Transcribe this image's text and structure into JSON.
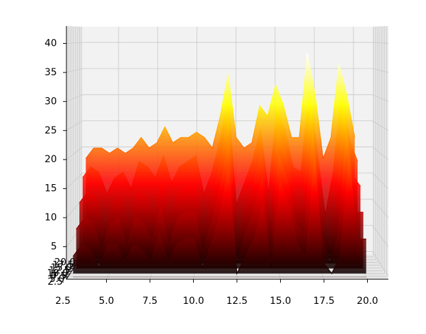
{
  "chart_data": {
    "type": "surface3d",
    "colormap": "hot",
    "grid": true,
    "x": [
      3,
      3.5,
      4,
      4.5,
      5,
      5.5,
      6,
      6.5,
      7,
      7.5,
      8,
      8.5,
      9,
      9.5,
      10,
      10.5,
      11,
      11.5,
      12,
      12.5,
      13,
      13.5,
      14,
      14.5,
      15,
      15.5,
      16,
      16.5,
      17,
      17.5,
      18,
      18.5,
      19,
      19.5,
      20
    ],
    "series": [
      {
        "y": 20,
        "values": [
          18,
          20,
          20,
          19,
          20,
          19,
          20,
          22,
          20,
          21,
          24,
          21,
          22,
          22,
          23,
          22,
          20,
          26,
          34,
          22,
          20,
          21,
          28,
          26,
          32,
          28,
          22,
          22,
          38,
          30,
          18,
          22,
          36,
          30,
          22
        ]
      },
      {
        "y": 15.5,
        "values": [
          15,
          17,
          16,
          12,
          15,
          16,
          13,
          18,
          17,
          15,
          19,
          14,
          17,
          18,
          19,
          12,
          16,
          22,
          30,
          10,
          14,
          18,
          24,
          12,
          28,
          24,
          17,
          16,
          32,
          20,
          8,
          16,
          32,
          22,
          18
        ]
      },
      {
        "y": 11,
        "values": [
          11,
          13,
          12,
          6,
          11,
          12,
          7,
          13,
          12,
          9,
          15,
          8,
          13,
          14,
          14,
          6,
          12,
          18,
          26,
          4,
          10,
          14,
          20,
          6,
          24,
          20,
          12,
          10,
          28,
          12,
          3,
          10,
          28,
          16,
          14
        ]
      },
      {
        "y": 6.5,
        "values": [
          7,
          9,
          8,
          3,
          8,
          9,
          4,
          9,
          8,
          5,
          11,
          4,
          9,
          10,
          10,
          3,
          8,
          14,
          22,
          1,
          6,
          10,
          16,
          3,
          20,
          16,
          8,
          6,
          24,
          6,
          1,
          6,
          24,
          10,
          10
        ]
      },
      {
        "y": 2,
        "values": [
          3,
          5,
          4,
          1,
          5,
          5,
          2,
          5,
          4,
          2,
          7,
          2,
          5,
          6,
          6,
          1,
          5,
          10,
          18,
          0,
          3,
          6,
          12,
          1,
          16,
          12,
          5,
          3,
          20,
          2,
          0,
          3,
          20,
          6,
          6
        ]
      }
    ],
    "xlim": [
      2.7,
      21.2
    ],
    "xticks": [
      {
        "value": 2.5,
        "label": "2.5"
      },
      {
        "value": 5,
        "label": "5.0"
      },
      {
        "value": 7.5,
        "label": "7.5"
      },
      {
        "value": 10,
        "label": "10.0"
      },
      {
        "value": 12.5,
        "label": "12.5"
      },
      {
        "value": 15,
        "label": "15.0"
      },
      {
        "value": 17.5,
        "label": "17.5"
      },
      {
        "value": 20,
        "label": "20.0"
      }
    ],
    "ylim": [
      0,
      22
    ],
    "yticks": [
      {
        "value": 2.5,
        "label": "2.5"
      },
      {
        "value": 5,
        "label": "5.0"
      },
      {
        "value": 7.5,
        "label": "7.5"
      },
      {
        "value": 10,
        "label": "10.0"
      },
      {
        "value": 12.5,
        "label": "12.5"
      },
      {
        "value": 15,
        "label": "15.0"
      },
      {
        "value": 17.5,
        "label": "17.5"
      },
      {
        "value": 20,
        "label": "20.0"
      }
    ],
    "zlim": [
      -0.6,
      43
    ],
    "zticks": [
      0,
      5,
      10,
      15,
      20,
      25,
      30,
      35,
      40
    ]
  }
}
